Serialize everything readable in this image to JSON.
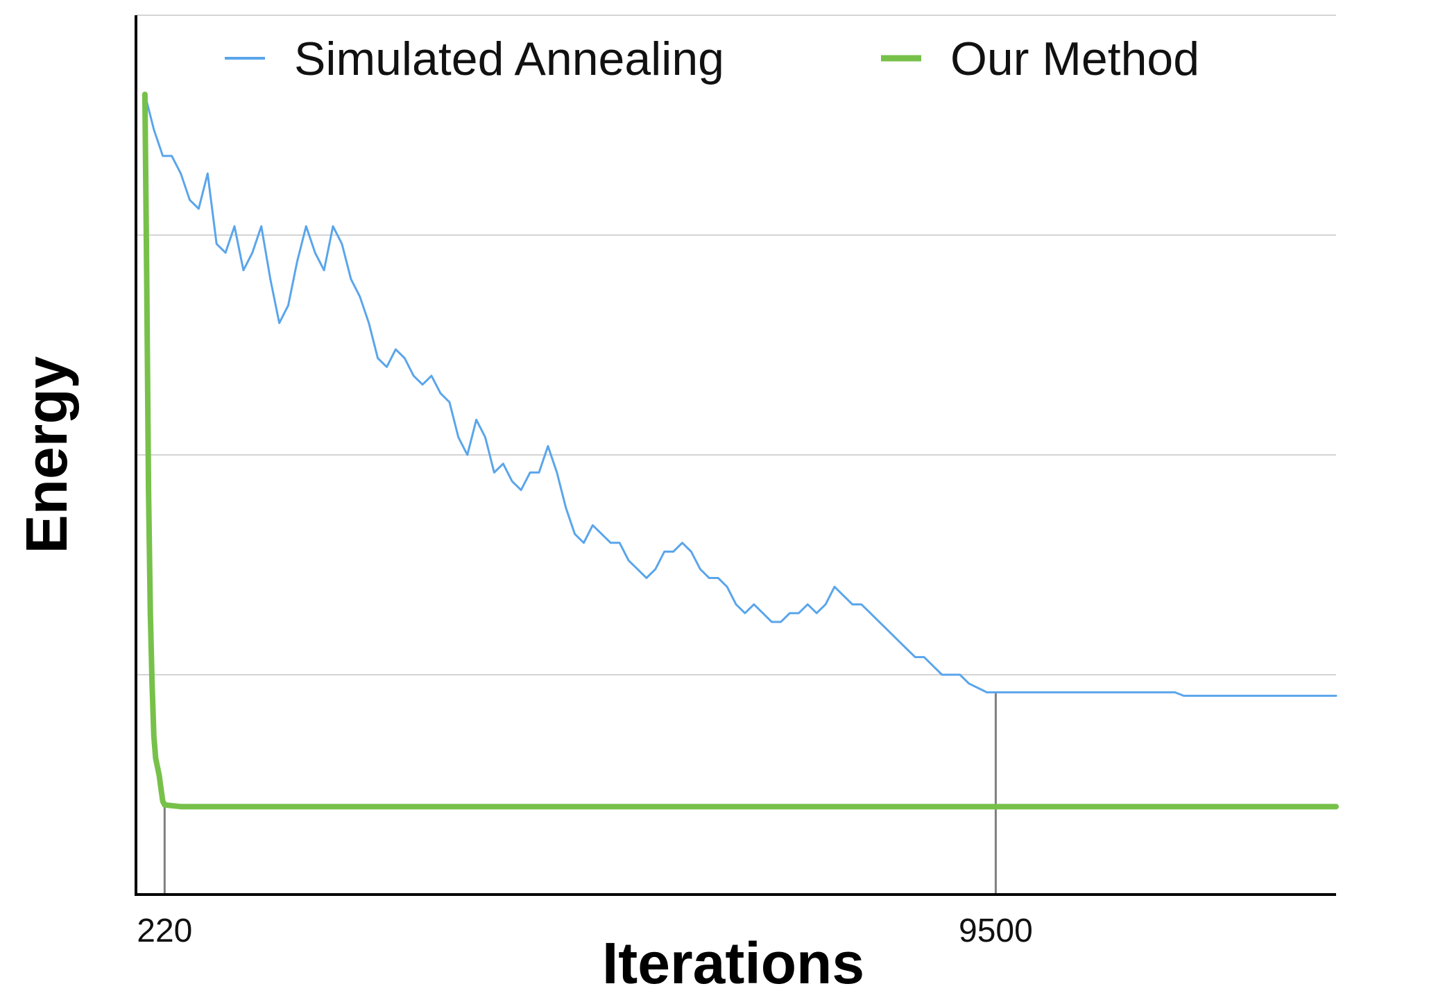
{
  "chart_data": {
    "type": "line",
    "title": "",
    "xlabel": "Iterations",
    "ylabel": "Energy",
    "x_ticks": [
      {
        "value": 220,
        "label": "220"
      },
      {
        "value": 9500,
        "label": "9500"
      }
    ],
    "xlim": [
      -100,
      13300
    ],
    "ylim": [
      0,
      100
    ],
    "grid": true,
    "gridlines_y": [
      25,
      50,
      75,
      100
    ],
    "legend_position": "top",
    "markers": [
      220,
      9500
    ],
    "series": [
      {
        "name": "Simulated Annealing",
        "color": "#5aa5eb",
        "line_width": 3,
        "points": [
          [
            0,
            91
          ],
          [
            100,
            87
          ],
          [
            200,
            84
          ],
          [
            300,
            84
          ],
          [
            400,
            82
          ],
          [
            500,
            79
          ],
          [
            600,
            78
          ],
          [
            700,
            82
          ],
          [
            800,
            74
          ],
          [
            900,
            73
          ],
          [
            1000,
            76
          ],
          [
            1100,
            71
          ],
          [
            1200,
            73
          ],
          [
            1300,
            76
          ],
          [
            1400,
            70
          ],
          [
            1500,
            65
          ],
          [
            1600,
            67
          ],
          [
            1700,
            72
          ],
          [
            1800,
            76
          ],
          [
            1900,
            73
          ],
          [
            2000,
            71
          ],
          [
            2100,
            76
          ],
          [
            2200,
            74
          ],
          [
            2300,
            70
          ],
          [
            2400,
            68
          ],
          [
            2500,
            65
          ],
          [
            2600,
            61
          ],
          [
            2700,
            60
          ],
          [
            2800,
            62
          ],
          [
            2900,
            61
          ],
          [
            3000,
            59
          ],
          [
            3100,
            58
          ],
          [
            3200,
            59
          ],
          [
            3300,
            57
          ],
          [
            3400,
            56
          ],
          [
            3500,
            52
          ],
          [
            3600,
            50
          ],
          [
            3700,
            54
          ],
          [
            3800,
            52
          ],
          [
            3900,
            48
          ],
          [
            4000,
            49
          ],
          [
            4100,
            47
          ],
          [
            4200,
            46
          ],
          [
            4300,
            48
          ],
          [
            4400,
            48
          ],
          [
            4500,
            51
          ],
          [
            4600,
            48
          ],
          [
            4700,
            44
          ],
          [
            4800,
            41
          ],
          [
            4900,
            40
          ],
          [
            5000,
            42
          ],
          [
            5100,
            41
          ],
          [
            5200,
            40
          ],
          [
            5300,
            40
          ],
          [
            5400,
            38
          ],
          [
            5500,
            37
          ],
          [
            5600,
            36
          ],
          [
            5700,
            37
          ],
          [
            5800,
            39
          ],
          [
            5900,
            39
          ],
          [
            6000,
            40
          ],
          [
            6100,
            39
          ],
          [
            6200,
            37
          ],
          [
            6300,
            36
          ],
          [
            6400,
            36
          ],
          [
            6500,
            35
          ],
          [
            6600,
            33
          ],
          [
            6700,
            32
          ],
          [
            6800,
            33
          ],
          [
            6900,
            32
          ],
          [
            7000,
            31
          ],
          [
            7100,
            31
          ],
          [
            7200,
            32
          ],
          [
            7300,
            32
          ],
          [
            7400,
            33
          ],
          [
            7500,
            32
          ],
          [
            7600,
            33
          ],
          [
            7700,
            35
          ],
          [
            7800,
            34
          ],
          [
            7900,
            33
          ],
          [
            8000,
            33
          ],
          [
            8100,
            32
          ],
          [
            8200,
            31
          ],
          [
            8300,
            30
          ],
          [
            8400,
            29
          ],
          [
            8500,
            28
          ],
          [
            8600,
            27
          ],
          [
            8700,
            27
          ],
          [
            8800,
            26
          ],
          [
            8900,
            25
          ],
          [
            9000,
            25
          ],
          [
            9100,
            25
          ],
          [
            9200,
            24
          ],
          [
            9300,
            23.5
          ],
          [
            9400,
            23
          ],
          [
            9500,
            23
          ],
          [
            11500,
            23
          ],
          [
            11600,
            22.6
          ],
          [
            13300,
            22.6
          ]
        ]
      },
      {
        "name": "Our Method",
        "color": "#77c14a",
        "line_width": 8,
        "points": [
          [
            0,
            91
          ],
          [
            20,
            70
          ],
          [
            40,
            46
          ],
          [
            60,
            32
          ],
          [
            80,
            24
          ],
          [
            100,
            18
          ],
          [
            120,
            15.5
          ],
          [
            140,
            14.5
          ],
          [
            160,
            13.5
          ],
          [
            180,
            12
          ],
          [
            200,
            10.6
          ],
          [
            220,
            10.2
          ],
          [
            400,
            10
          ],
          [
            13300,
            10
          ]
        ]
      }
    ]
  }
}
